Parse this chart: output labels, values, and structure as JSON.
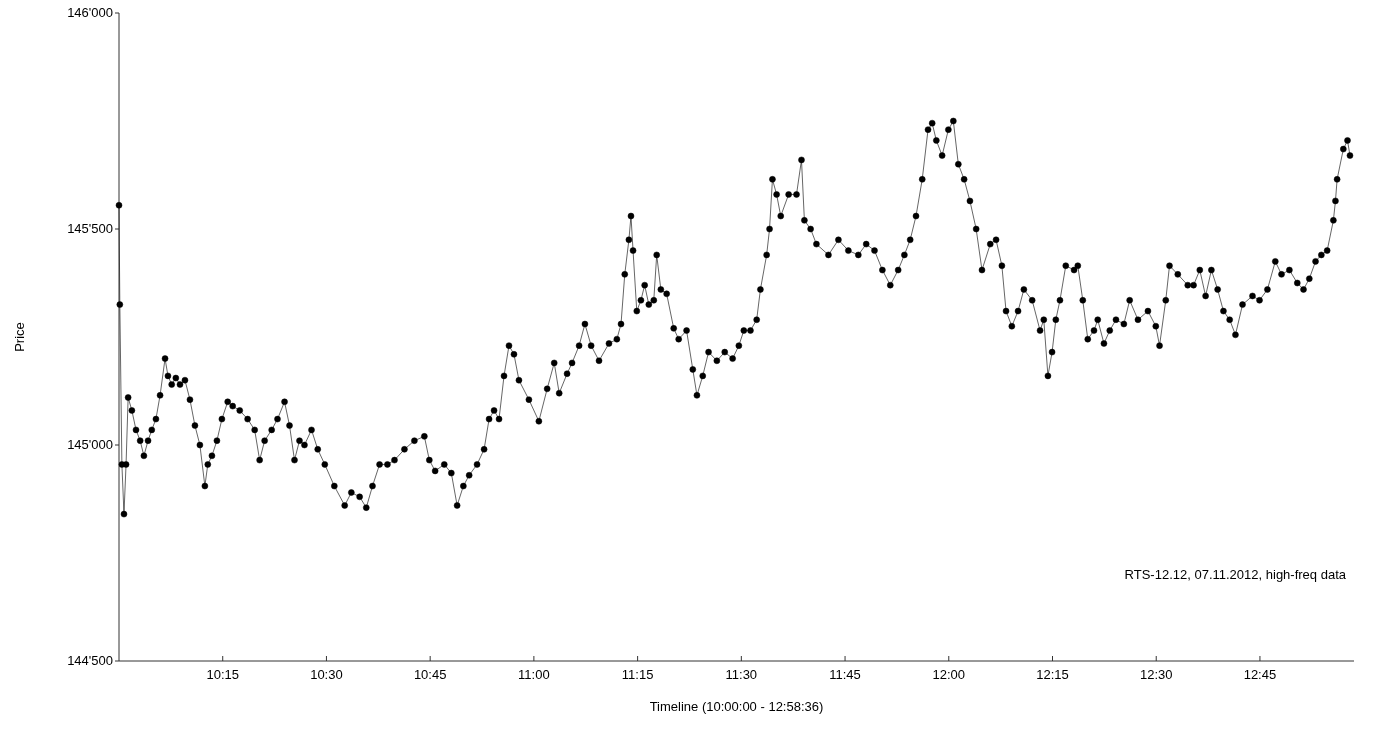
{
  "chart_data": {
    "type": "line",
    "xlabel": "Timeline (10:00:00 - 12:58:36)",
    "ylabel": "Price",
    "annotations": [
      "RTS-12.12, 07.11.2012, high-freq data"
    ],
    "xlim": [
      10,
      12.9767
    ],
    "xticks": [
      {
        "value": 10.25,
        "label": "10:15"
      },
      {
        "value": 10.5,
        "label": "10:30"
      },
      {
        "value": 10.75,
        "label": "10:45"
      },
      {
        "value": 11,
        "label": "11:00"
      },
      {
        "value": 11.25,
        "label": "11:15"
      },
      {
        "value": 11.5,
        "label": "11:30"
      },
      {
        "value": 11.75,
        "label": "11:45"
      },
      {
        "value": 12,
        "label": "12:00"
      },
      {
        "value": 12.25,
        "label": "12:15"
      },
      {
        "value": 12.5,
        "label": "12:30"
      },
      {
        "value": 12.75,
        "label": "12:45"
      }
    ],
    "ylim": [
      144500,
      146000
    ],
    "yticks": [
      {
        "value": 144500,
        "label": "144'500"
      },
      {
        "value": 145000,
        "label": "145'000"
      },
      {
        "value": 145500,
        "label": "145'500"
      },
      {
        "value": 146000,
        "label": "146'000"
      }
    ],
    "grid": false,
    "marker": "circle",
    "line_style": "solid",
    "series": [
      {
        "color": "#000000",
        "x": [
          10,
          10.002,
          10.007,
          10.012,
          10.017,
          10.022,
          10.031,
          10.041,
          10.051,
          10.06,
          10.07,
          10.079,
          10.089,
          10.099,
          10.111,
          10.118,
          10.127,
          10.137,
          10.147,
          10.159,
          10.171,
          10.183,
          10.195,
          10.207,
          10.214,
          10.224,
          10.236,
          10.248,
          10.262,
          10.274,
          10.291,
          10.31,
          10.327,
          10.339,
          10.351,
          10.368,
          10.382,
          10.399,
          10.411,
          10.423,
          10.435,
          10.447,
          10.464,
          10.479,
          10.496,
          10.519,
          10.544,
          10.56,
          10.58,
          10.596,
          10.611,
          10.628,
          10.647,
          10.664,
          10.688,
          10.712,
          10.736,
          10.748,
          10.762,
          10.784,
          10.801,
          10.815,
          10.83,
          10.844,
          10.863,
          10.88,
          10.892,
          10.904,
          10.916,
          10.928,
          10.94,
          10.952,
          10.964,
          10.988,
          11.012,
          11.032,
          11.049,
          11.061,
          11.08,
          11.092,
          11.109,
          11.123,
          11.138,
          11.157,
          11.181,
          11.2,
          11.21,
          11.219,
          11.229,
          11.234,
          11.239,
          11.248,
          11.258,
          11.267,
          11.277,
          11.289,
          11.296,
          11.306,
          11.32,
          11.337,
          11.349,
          11.368,
          11.383,
          11.393,
          11.407,
          11.421,
          11.441,
          11.46,
          11.479,
          11.494,
          11.506,
          11.522,
          11.537,
          11.546,
          11.561,
          11.568,
          11.575,
          11.585,
          11.595,
          11.614,
          11.633,
          11.645,
          11.652,
          11.667,
          11.681,
          11.71,
          11.734,
          11.758,
          11.782,
          11.801,
          11.821,
          11.84,
          11.859,
          11.878,
          11.893,
          11.907,
          11.921,
          11.936,
          11.95,
          11.96,
          11.97,
          11.984,
          11.999,
          12.011,
          12.023,
          12.037,
          12.051,
          12.066,
          12.08,
          12.1,
          12.114,
          12.128,
          12.138,
          12.152,
          12.167,
          12.181,
          12.201,
          12.22,
          12.229,
          12.239,
          12.249,
          12.258,
          12.268,
          12.282,
          12.302,
          12.311,
          12.323,
          12.335,
          12.35,
          12.359,
          12.374,
          12.388,
          12.403,
          12.422,
          12.436,
          12.456,
          12.48,
          12.499,
          12.508,
          12.523,
          12.532,
          12.552,
          12.576,
          12.59,
          12.605,
          12.619,
          12.633,
          12.648,
          12.662,
          12.677,
          12.691,
          12.708,
          12.732,
          12.749,
          12.768,
          12.787,
          12.802,
          12.821,
          12.84,
          12.855,
          12.869,
          12.884,
          12.898,
          12.912,
          12.927,
          12.932,
          12.936,
          12.951,
          12.961,
          12.967
        ],
        "values": [
          145555,
          145325,
          144955,
          144840,
          144955,
          145110,
          145080,
          145035,
          145010,
          144975,
          145010,
          145035,
          145060,
          145115,
          145200,
          145160,
          145140,
          145155,
          145140,
          145150,
          145105,
          145045,
          145000,
          144905,
          144955,
          144975,
          145010,
          145060,
          145100,
          145090,
          145080,
          145060,
          145035,
          144965,
          145010,
          145035,
          145060,
          145100,
          145045,
          144965,
          145010,
          145000,
          145035,
          144990,
          144955,
          144905,
          144860,
          144890,
          144880,
          144855,
          144905,
          144955,
          144955,
          144965,
          144990,
          145010,
          145020,
          144965,
          144940,
          144955,
          144935,
          144860,
          144905,
          144930,
          144955,
          144990,
          145060,
          145080,
          145060,
          145160,
          145230,
          145210,
          145150,
          145105,
          145055,
          145130,
          145190,
          145120,
          145165,
          145190,
          145230,
          145280,
          145230,
          145195,
          145235,
          145245,
          145280,
          145395,
          145475,
          145530,
          145450,
          145310,
          145335,
          145370,
          145325,
          145335,
          145440,
          145360,
          145350,
          145270,
          145245,
          145265,
          145175,
          145115,
          145160,
          145215,
          145195,
          145215,
          145200,
          145230,
          145265,
          145265,
          145290,
          145360,
          145440,
          145500,
          145615,
          145580,
          145530,
          145580,
          145580,
          145660,
          145520,
          145500,
          145465,
          145440,
          145475,
          145450,
          145440,
          145465,
          145450,
          145405,
          145370,
          145405,
          145440,
          145475,
          145530,
          145615,
          145730,
          145745,
          145705,
          145670,
          145730,
          145750,
          145650,
          145615,
          145565,
          145500,
          145405,
          145465,
          145475,
          145415,
          145310,
          145275,
          145310,
          145360,
          145335,
          145265,
          145290,
          145160,
          145215,
          145290,
          145335,
          145415,
          145405,
          145415,
          145335,
          145245,
          145265,
          145290,
          145235,
          145265,
          145290,
          145280,
          145335,
          145290,
          145310,
          145275,
          145230,
          145335,
          145415,
          145395,
          145370,
          145370,
          145405,
          145345,
          145405,
          145360,
          145310,
          145290,
          145255,
          145325,
          145345,
          145335,
          145360,
          145425,
          145395,
          145405,
          145375,
          145360,
          145385,
          145425,
          145440,
          145450,
          145520,
          145565,
          145615,
          145685,
          145705,
          145670
        ]
      }
    ]
  }
}
